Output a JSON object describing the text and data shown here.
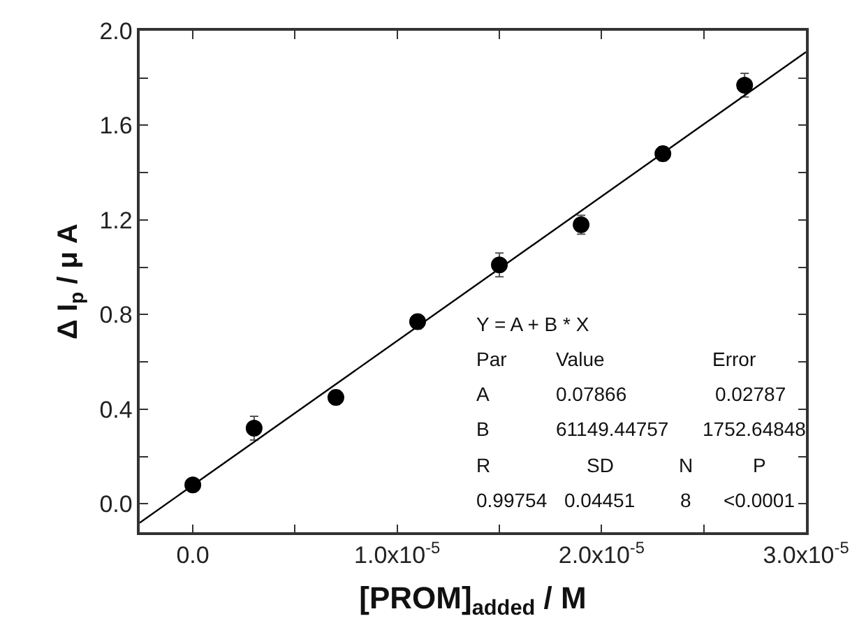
{
  "chart_data": {
    "type": "scatter",
    "xlabel": "[PROM]$_{added}$ / M",
    "ylabel": "Δ I$_{p}$ / μ A",
    "series": [
      {
        "type": "scatter",
        "color": "#000000",
        "marker": "circle",
        "x": [
          0,
          3e-06,
          7e-06,
          1.1e-05,
          1.5e-05,
          1.9e-05,
          2.3e-05,
          2.7e-05
        ],
        "values": [
          0.08,
          0.32,
          0.45,
          0.77,
          1.01,
          1.18,
          1.48,
          1.77
        ],
        "errors": [
          null,
          0.05,
          0.03,
          0.03,
          0.05,
          0.04,
          0.03,
          0.05
        ]
      },
      {
        "type": "line",
        "color": "#000000",
        "marker": "none",
        "x": [
          -2.6e-06,
          3e-05
        ],
        "values": [
          -0.08,
          1.91
        ]
      }
    ],
    "xlim": [
      -2.6e-06,
      3e-05
    ],
    "xticks": [
      {
        "value": 0,
        "label": "0.0"
      },
      {
        "value": 5e-06,
        "label": null
      },
      {
        "value": 1e-05,
        "label": "1.0x10$^{-5}$"
      },
      {
        "value": 1.5e-05,
        "label": null
      },
      {
        "value": 2e-05,
        "label": "2.0x10$^{-5}$"
      },
      {
        "value": 2.5e-05,
        "label": null
      },
      {
        "value": 3e-05,
        "label": "3.0x10$^{-5}$"
      }
    ],
    "ylim": [
      -0.12,
      2.0
    ],
    "yticks": [
      {
        "value": 0,
        "label": "0.0"
      },
      {
        "value": 0.2,
        "label": null
      },
      {
        "value": 0.4,
        "label": "0.4"
      },
      {
        "value": 0.6,
        "label": null
      },
      {
        "value": 0.8,
        "label": "0.8"
      },
      {
        "value": 1.0,
        "label": null
      },
      {
        "value": 1.2,
        "label": "1.2"
      },
      {
        "value": 1.4,
        "label": null
      },
      {
        "value": 1.6,
        "label": "1.6"
      },
      {
        "value": 1.8,
        "label": null
      },
      {
        "value": 2.0,
        "label": "2.0"
      }
    ],
    "annotations": [
      "Y = A + B * X",
      "Par",
      "Value",
      "Error",
      "A",
      "0.07866",
      "0.02787",
      "B",
      "61149.44757",
      "1752.64848",
      "R",
      "SD",
      "N",
      "P",
      "0.99754",
      "0.04451",
      "8",
      "<0.0001"
    ]
  }
}
